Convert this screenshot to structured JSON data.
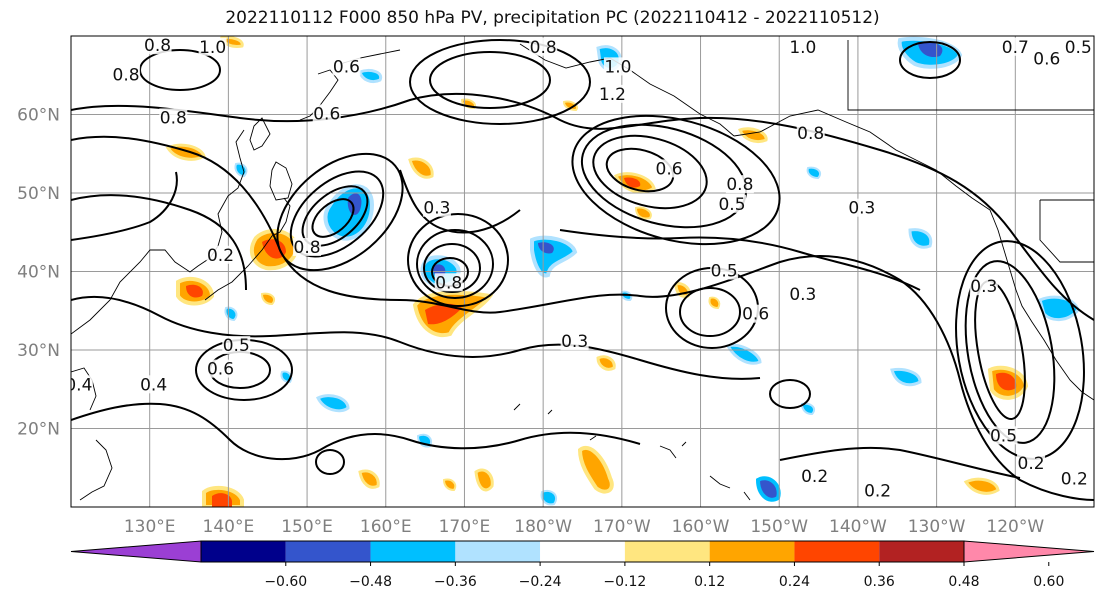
{
  "chart_data": {
    "type": "heatmap",
    "title": "2022110112 F000 850 hPa PV, precipitation PC (2022110412 - 2022110512)",
    "map_extent": {
      "lon_min": 120,
      "lon_max": 250,
      "lat_min": 10,
      "lat_max": 70
    },
    "lat_ticks": [
      {
        "value": 20,
        "label": "20°N"
      },
      {
        "value": 30,
        "label": "30°N"
      },
      {
        "value": 40,
        "label": "40°N"
      },
      {
        "value": 50,
        "label": "50°N"
      },
      {
        "value": 60,
        "label": "60°N"
      }
    ],
    "lon_ticks": [
      {
        "value": 130,
        "label": "130°E"
      },
      {
        "value": 140,
        "label": "140°E"
      },
      {
        "value": 150,
        "label": "150°E"
      },
      {
        "value": 160,
        "label": "160°E"
      },
      {
        "value": 170,
        "label": "170°E"
      },
      {
        "value": 180,
        "label": "180°W"
      },
      {
        "value": 190,
        "label": "170°W"
      },
      {
        "value": 200,
        "label": "160°W"
      },
      {
        "value": 210,
        "label": "150°W"
      },
      {
        "value": 220,
        "label": "140°W"
      },
      {
        "value": 230,
        "label": "130°W"
      },
      {
        "value": 240,
        "label": "120°W"
      }
    ],
    "grid": true,
    "colorbar": {
      "levels": [
        -0.72,
        -0.6,
        -0.48,
        -0.36,
        -0.24,
        -0.12,
        0.12,
        0.24,
        0.36,
        0.48,
        0.6,
        0.72
      ],
      "tick_labels": [
        "−0.60",
        "−0.48",
        "−0.36",
        "−0.24",
        "−0.12",
        "0.12",
        "0.24",
        "0.36",
        "0.48",
        "0.60"
      ],
      "colors": [
        "#9b3fd4",
        "#00008b",
        "#3455cc",
        "#00bfff",
        "#b0e2ff",
        "#ffffff",
        "#ffe680",
        "#ffa500",
        "#ff4500",
        "#b22222",
        "#ff88aa"
      ],
      "extend": "both"
    },
    "contour_labels": [
      {
        "text": "0.8",
        "lon": 131,
        "lat": 68.7
      },
      {
        "text": "1.0",
        "lon": 138,
        "lat": 68.5
      },
      {
        "text": "0.8",
        "lon": 127,
        "lat": 65
      },
      {
        "text": "0.6",
        "lon": 155,
        "lat": 66
      },
      {
        "text": "0.8",
        "lon": 180,
        "lat": 68.5
      },
      {
        "text": "1.0",
        "lon": 189.5,
        "lat": 66
      },
      {
        "text": "1.2",
        "lon": 188.8,
        "lat": 62.5
      },
      {
        "text": "1.0",
        "lon": 213,
        "lat": 68.5
      },
      {
        "text": "0.7",
        "lon": 240,
        "lat": 68.5
      },
      {
        "text": "0.6",
        "lon": 244,
        "lat": 67
      },
      {
        "text": "0.5",
        "lon": 248,
        "lat": 68.5
      },
      {
        "text": "0.6",
        "lon": 152.5,
        "lat": 60
      },
      {
        "text": "0.8",
        "lon": 133,
        "lat": 59.5
      },
      {
        "text": "0.6",
        "lon": 196,
        "lat": 53
      },
      {
        "text": "0.8",
        "lon": 214,
        "lat": 57.5
      },
      {
        "text": "0.8",
        "lon": 205,
        "lat": 51
      },
      {
        "text": "0.5",
        "lon": 204,
        "lat": 48.5
      },
      {
        "text": "0.3",
        "lon": 220.5,
        "lat": 48
      },
      {
        "text": "0.3",
        "lon": 166.5,
        "lat": 48
      },
      {
        "text": "0.8",
        "lon": 150,
        "lat": 43
      },
      {
        "text": "0.2",
        "lon": 139,
        "lat": 42
      },
      {
        "text": "0.8",
        "lon": 168,
        "lat": 38.5
      },
      {
        "text": "0.5",
        "lon": 203,
        "lat": 40
      },
      {
        "text": "0.3",
        "lon": 213,
        "lat": 37
      },
      {
        "text": "0.6",
        "lon": 207,
        "lat": 34.5
      },
      {
        "text": "0.3",
        "lon": 184,
        "lat": 31
      },
      {
        "text": "0.5",
        "lon": 141,
        "lat": 30.5
      },
      {
        "text": "0.6",
        "lon": 139,
        "lat": 27.5
      },
      {
        "text": "0.4",
        "lon": 121,
        "lat": 25.5
      },
      {
        "text": "0.4",
        "lon": 130.5,
        "lat": 25.5
      },
      {
        "text": "0.3",
        "lon": 236,
        "lat": 38
      },
      {
        "text": "0.5",
        "lon": 238.5,
        "lat": 19
      },
      {
        "text": "0.2",
        "lon": 242,
        "lat": 15.5
      },
      {
        "text": "0.2",
        "lon": 247.5,
        "lat": 13.5
      },
      {
        "text": "0.2",
        "lon": 214.5,
        "lat": 13.8
      },
      {
        "text": "0.2",
        "lon": 222.5,
        "lat": 12
      }
    ]
  }
}
